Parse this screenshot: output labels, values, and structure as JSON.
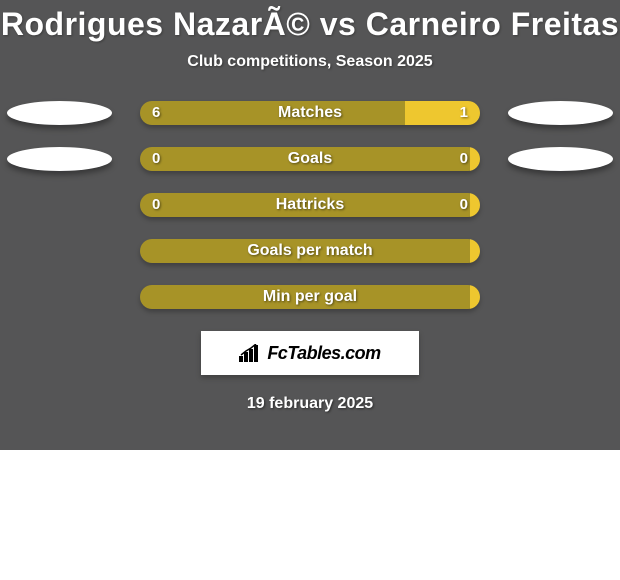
{
  "background_color": "#555556",
  "title": {
    "text": "Rodrigues NazarÃ© vs Carneiro Freitas",
    "color": "#ffffff",
    "fontsize": 32
  },
  "subtitle": {
    "text": "Club competitions, Season 2025",
    "color": "#ffffff",
    "fontsize": 16
  },
  "colors": {
    "left": "#a79327",
    "right": "#eec72f",
    "oval": "#ffffff"
  },
  "rows": [
    {
      "label": "Matches",
      "left_val": "6",
      "right_val": "1",
      "left_pct": 78,
      "right_pct": 22,
      "show_ovals": true,
      "show_vals": true
    },
    {
      "label": "Goals",
      "left_val": "0",
      "right_val": "0",
      "left_pct": 97,
      "right_pct": 3,
      "show_ovals": true,
      "show_vals": true
    },
    {
      "label": "Hattricks",
      "left_val": "0",
      "right_val": "0",
      "left_pct": 97,
      "right_pct": 3,
      "show_ovals": false,
      "show_vals": true
    },
    {
      "label": "Goals per match",
      "left_val": "",
      "right_val": "",
      "left_pct": 97,
      "right_pct": 3,
      "show_ovals": false,
      "show_vals": false
    },
    {
      "label": "Min per goal",
      "left_val": "",
      "right_val": "",
      "left_pct": 97,
      "right_pct": 3,
      "show_ovals": false,
      "show_vals": false
    }
  ],
  "brand": {
    "text": "FcTables.com"
  },
  "date": "19 february 2025"
}
